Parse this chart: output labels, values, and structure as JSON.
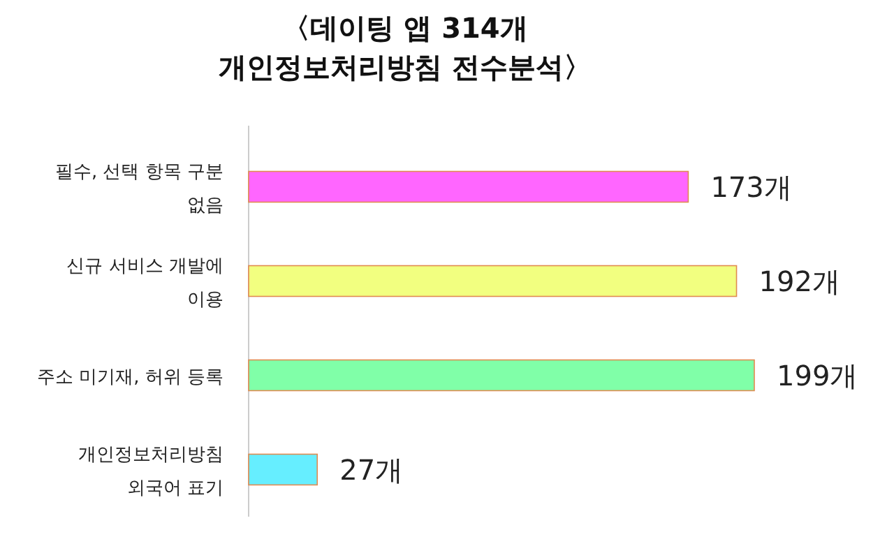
{
  "chart_data": {
    "type": "bar",
    "orientation": "horizontal",
    "title": "〈데이팅 앱 314개\n개인정보처리방침 전수분석〉",
    "categories": [
      "필수, 선택 항목 구분\n없음",
      "신규 서비스 개발에\n이용",
      "주소 미기재, 허위 등록",
      "개인정보처리방침\n외국어 표기"
    ],
    "values": [
      173,
      192,
      199,
      27
    ],
    "colors": [
      "#ff66ff",
      "#f2ff80",
      "#80ffa8",
      "#66eeff"
    ],
    "value_labels": [
      "173개",
      "192개",
      "199개",
      "27개"
    ]
  }
}
